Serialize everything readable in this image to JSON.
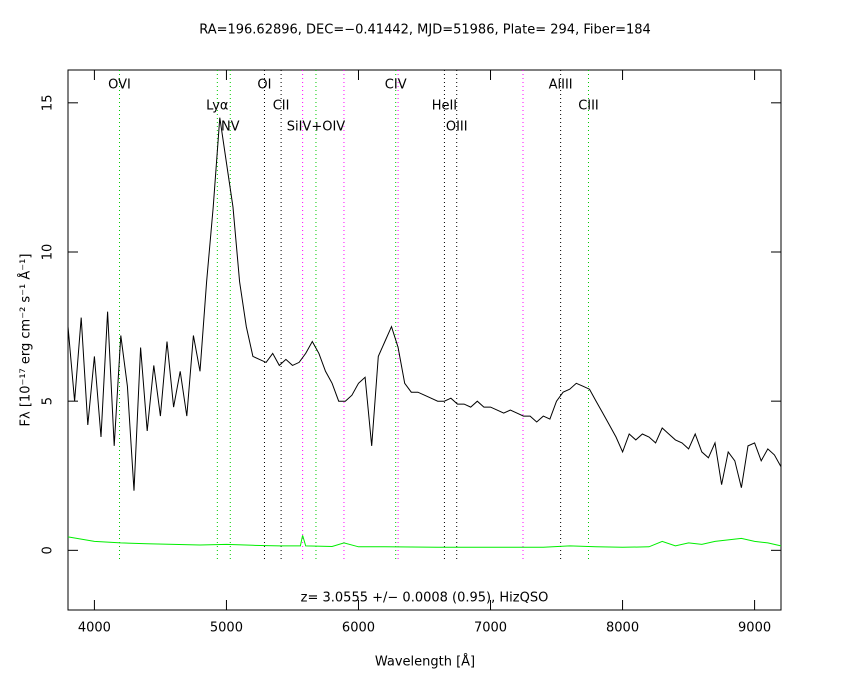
{
  "chart_data": {
    "type": "line",
    "title": "RA=196.62896, DEC=−0.41442, MJD=51986, Plate= 294, Fiber=184",
    "annotation": "z= 3.0555 +/− 0.0008 (0.95), HizQSO",
    "x_label": "Wavelength [Å]",
    "y_label": "Fλ [10⁻¹⁷ erg cm⁻² s⁻¹ Å⁻¹]",
    "xlim": [
      3800,
      9200
    ],
    "ylim": [
      -2,
      16.1
    ],
    "xticks": [
      4000,
      5000,
      6000,
      7000,
      8000,
      9000
    ],
    "yticks": [
      0,
      5,
      10,
      15
    ],
    "series": [
      {
        "color": "#000000",
        "x": [
          3800,
          3850,
          3900,
          3950,
          4000,
          4050,
          4100,
          4150,
          4200,
          4250,
          4300,
          4350,
          4400,
          4450,
          4500,
          4550,
          4600,
          4650,
          4700,
          4750,
          4800,
          4850,
          4900,
          4950,
          5000,
          5050,
          5100,
          5150,
          5200,
          5250,
          5300,
          5350,
          5400,
          5450,
          5500,
          5550,
          5600,
          5650,
          5700,
          5750,
          5800,
          5850,
          5900,
          5950,
          6000,
          6050,
          6100,
          6150,
          6200,
          6250,
          6300,
          6350,
          6400,
          6450,
          6500,
          6550,
          6600,
          6650,
          6700,
          6750,
          6800,
          6850,
          6900,
          6950,
          7000,
          7050,
          7100,
          7150,
          7200,
          7250,
          7300,
          7350,
          7400,
          7450,
          7500,
          7550,
          7600,
          7650,
          7700,
          7750,
          7800,
          7850,
          7900,
          7950,
          8000,
          8050,
          8100,
          8150,
          8200,
          8250,
          8300,
          8350,
          8400,
          8450,
          8500,
          8550,
          8600,
          8650,
          8700,
          8750,
          8800,
          8850,
          8900,
          8950,
          9000,
          9050,
          9100,
          9150,
          9200
        ],
        "values": [
          7.5,
          5.0,
          7.8,
          4.2,
          6.5,
          3.8,
          8.0,
          3.5,
          7.2,
          5.5,
          2.0,
          6.8,
          4.0,
          6.2,
          4.5,
          7.0,
          4.8,
          6.0,
          4.5,
          7.2,
          6.0,
          9.0,
          11.5,
          14.5,
          13.0,
          11.5,
          9.0,
          7.5,
          6.5,
          6.4,
          6.3,
          6.6,
          6.2,
          6.4,
          6.2,
          6.3,
          6.6,
          7.0,
          6.6,
          6.0,
          5.6,
          5.0,
          5.0,
          5.2,
          5.6,
          5.8,
          3.5,
          6.5,
          7.0,
          7.5,
          6.8,
          5.6,
          5.3,
          5.3,
          5.2,
          5.1,
          5.0,
          5.0,
          5.1,
          4.9,
          4.9,
          4.8,
          5.0,
          4.8,
          4.8,
          4.7,
          4.6,
          4.7,
          4.6,
          4.5,
          4.5,
          4.3,
          4.5,
          4.4,
          5.0,
          5.3,
          5.4,
          5.6,
          5.5,
          5.4,
          5.0,
          4.6,
          4.2,
          3.8,
          3.3,
          3.9,
          3.7,
          3.9,
          3.8,
          3.6,
          4.1,
          3.9,
          3.7,
          3.6,
          3.4,
          3.9,
          3.3,
          3.1,
          3.6,
          2.2,
          3.3,
          3.0,
          2.1,
          3.5,
          3.6,
          3.0,
          3.4,
          3.2,
          2.8
        ]
      },
      {
        "color": "#00ee00",
        "x": [
          3800,
          4000,
          4200,
          4400,
          4600,
          4800,
          5000,
          5200,
          5400,
          5560,
          5577,
          5600,
          5800,
          5890,
          6000,
          6200,
          6400,
          6600,
          6800,
          7000,
          7200,
          7400,
          7600,
          7800,
          8000,
          8200,
          8300,
          8400,
          8500,
          8600,
          8700,
          8800,
          8900,
          9000,
          9100,
          9200
        ],
        "values": [
          0.45,
          0.3,
          0.25,
          0.22,
          0.2,
          0.18,
          0.2,
          0.17,
          0.15,
          0.15,
          0.5,
          0.15,
          0.13,
          0.25,
          0.12,
          0.12,
          0.11,
          0.1,
          0.1,
          0.1,
          0.1,
          0.1,
          0.15,
          0.12,
          0.1,
          0.12,
          0.3,
          0.15,
          0.25,
          0.2,
          0.3,
          0.35,
          0.4,
          0.3,
          0.25,
          0.15
        ]
      }
    ],
    "lines": [
      {
        "label": "OVI",
        "x": 4190,
        "color": "#00cc00"
      },
      {
        "label": "Lyα",
        "x": 4931,
        "color": "#00cc00"
      },
      {
        "label": "NV",
        "x": 5029,
        "color": "#00cc00"
      },
      {
        "label": "OI",
        "x": 5288,
        "color": "#000000"
      },
      {
        "label": "CII",
        "x": 5414,
        "color": "#000000"
      },
      {
        "label": "SiIV+OIV",
        "x": 5678,
        "color": "#00cc00"
      },
      {
        "label": "CIV",
        "x": 6282,
        "color": "#00cc00"
      },
      {
        "label": "HeII",
        "x": 6651,
        "color": "#000000"
      },
      {
        "label": "OIII",
        "x": 6744,
        "color": "#000000"
      },
      {
        "label": "AlIII",
        "x": 7531,
        "color": "#000000"
      },
      {
        "label": "CIII",
        "x": 7742,
        "color": "#00cc00"
      }
    ],
    "sky_lines": {
      "x": [
        5577,
        5890,
        6300,
        7246
      ],
      "color": "#ff00ff"
    }
  }
}
